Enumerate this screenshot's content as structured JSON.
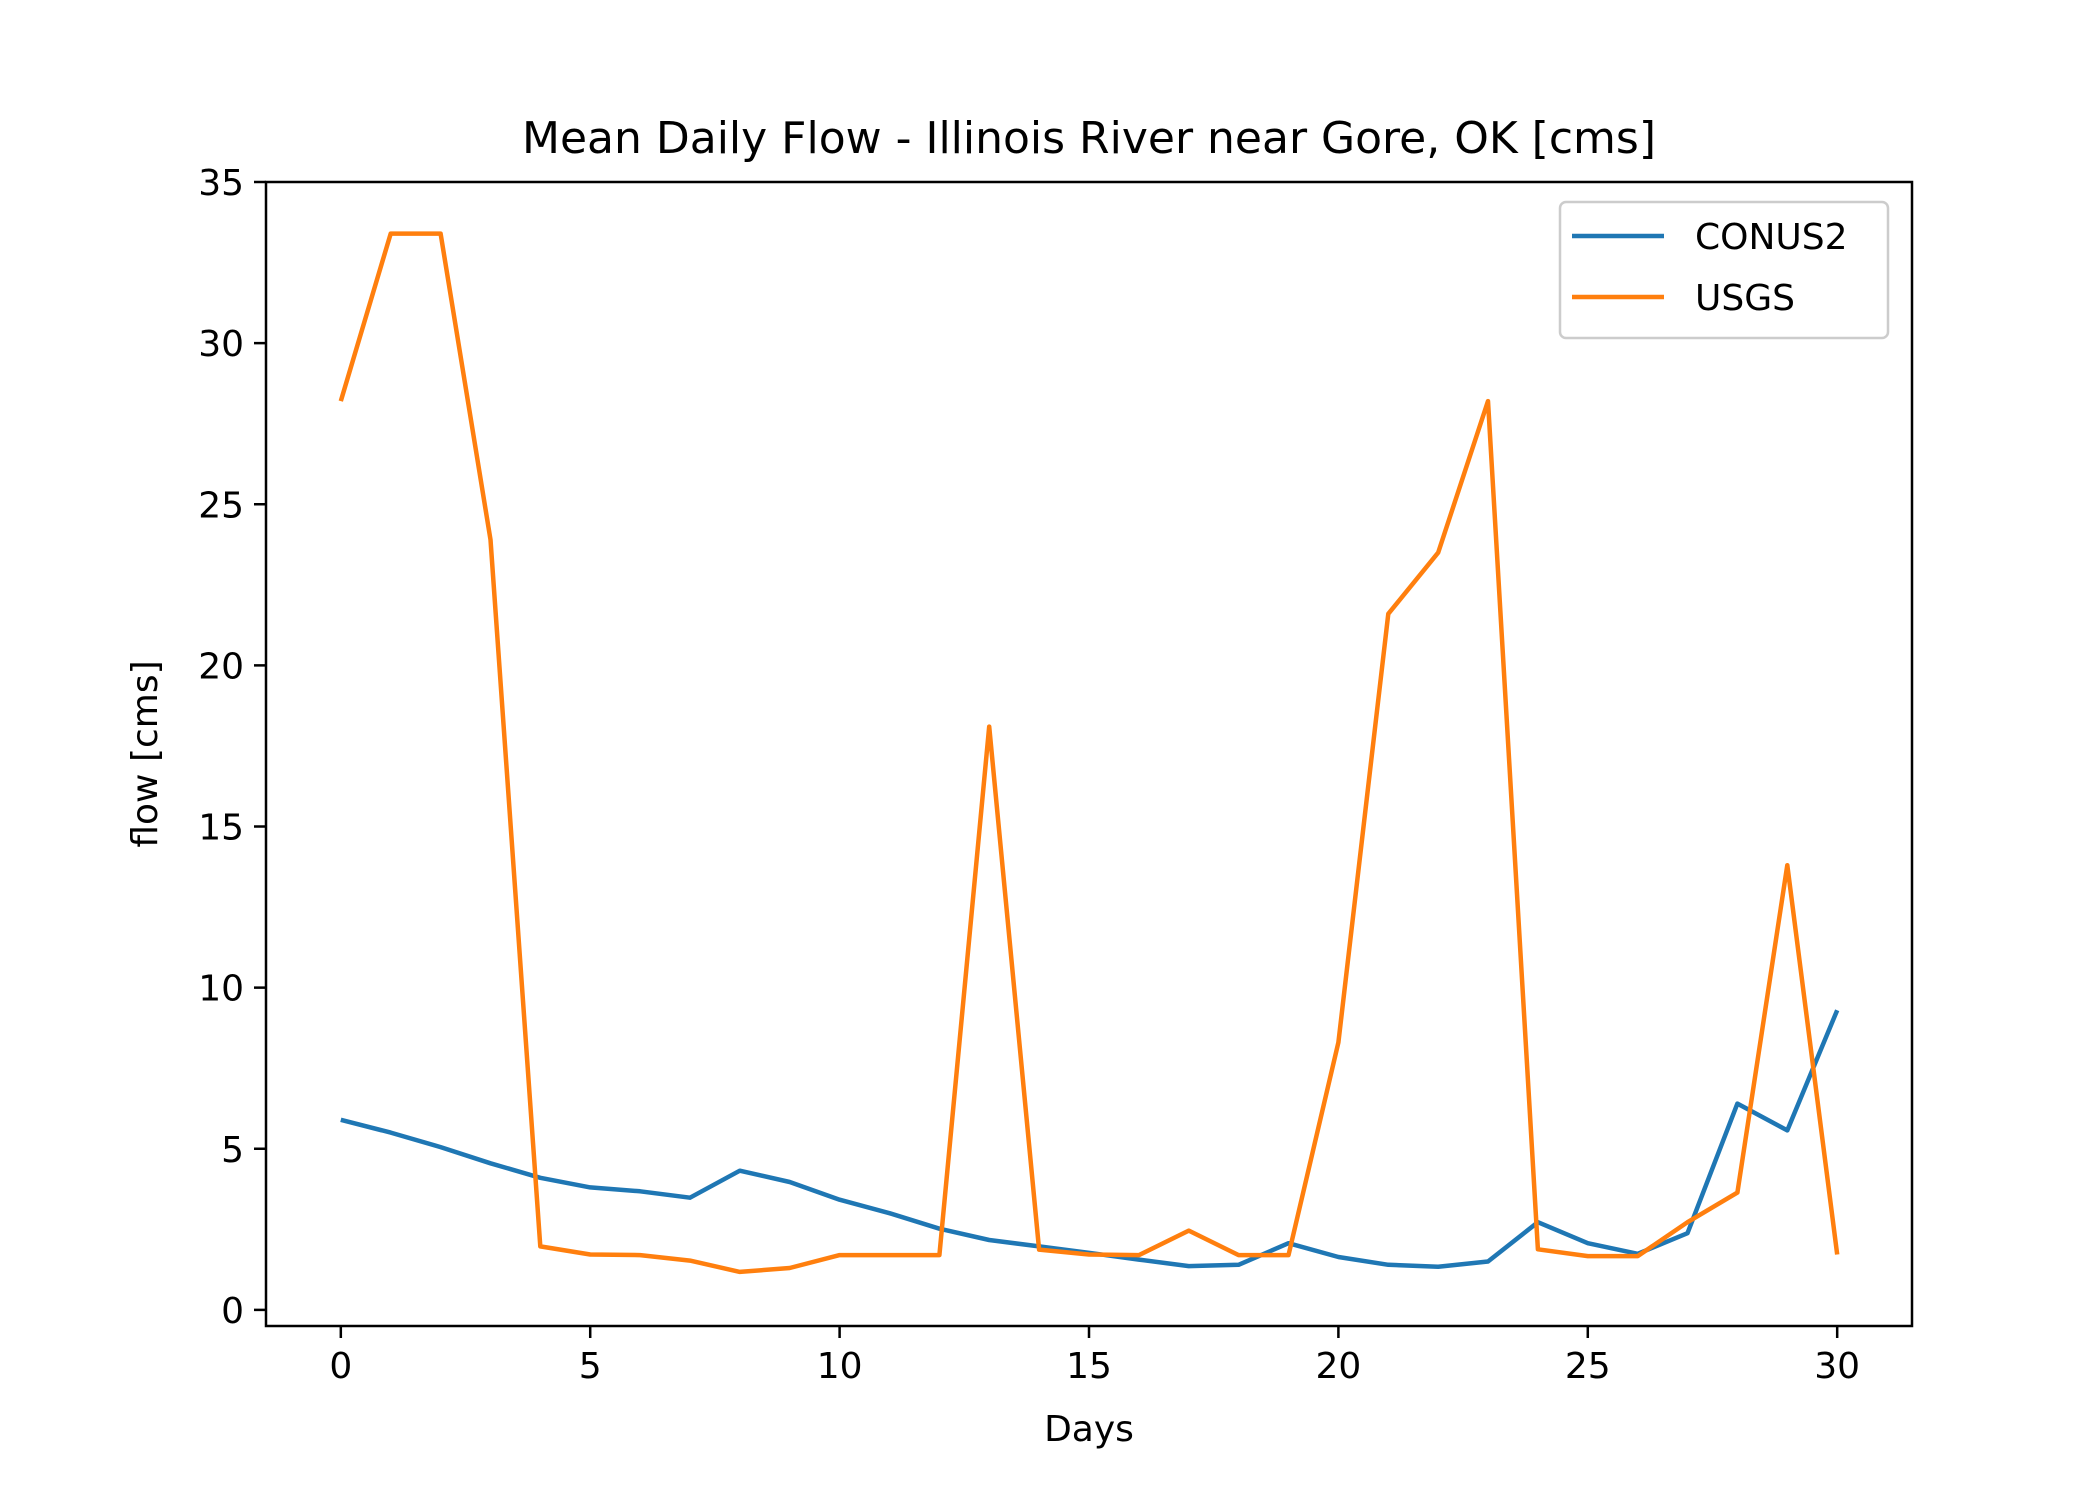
{
  "chart_data": {
    "type": "line",
    "title": "Mean Daily Flow - Illinois River near Gore, OK [cms]",
    "xlabel": "Days",
    "ylabel": "flow [cms]",
    "xlim": [
      -1.5,
      31.5
    ],
    "ylim": [
      -0.5,
      35
    ],
    "xticks": [
      0,
      5,
      10,
      15,
      20,
      25,
      30
    ],
    "yticks": [
      0,
      5,
      10,
      15,
      20,
      25,
      30,
      35
    ],
    "grid": false,
    "legend_position": "upper right",
    "x": [
      0,
      1,
      2,
      3,
      4,
      5,
      6,
      7,
      8,
      9,
      10,
      11,
      12,
      13,
      14,
      15,
      16,
      17,
      18,
      19,
      20,
      21,
      22,
      23,
      24,
      25,
      26,
      27,
      28,
      29,
      30
    ],
    "series": [
      {
        "name": "CONUS2",
        "color": "#1f77b4",
        "values": [
          5.9,
          5.5,
          5.05,
          4.55,
          4.1,
          3.8,
          3.68,
          3.48,
          4.32,
          3.97,
          3.42,
          3.0,
          2.52,
          2.17,
          1.97,
          1.77,
          1.56,
          1.36,
          1.4,
          2.07,
          1.64,
          1.4,
          1.34,
          1.5,
          2.72,
          2.07,
          1.74,
          2.38,
          6.4,
          5.57,
          9.3
        ]
      },
      {
        "name": "USGS",
        "color": "#ff7f0e",
        "values": [
          28.2,
          33.4,
          33.4,
          23.9,
          1.97,
          1.72,
          1.7,
          1.53,
          1.18,
          1.3,
          1.7,
          1.7,
          1.7,
          18.1,
          1.87,
          1.72,
          1.7,
          2.46,
          1.7,
          1.7,
          8.3,
          21.6,
          23.5,
          28.2,
          1.88,
          1.67,
          1.67,
          2.72,
          3.64,
          13.8,
          1.72
        ]
      }
    ]
  }
}
